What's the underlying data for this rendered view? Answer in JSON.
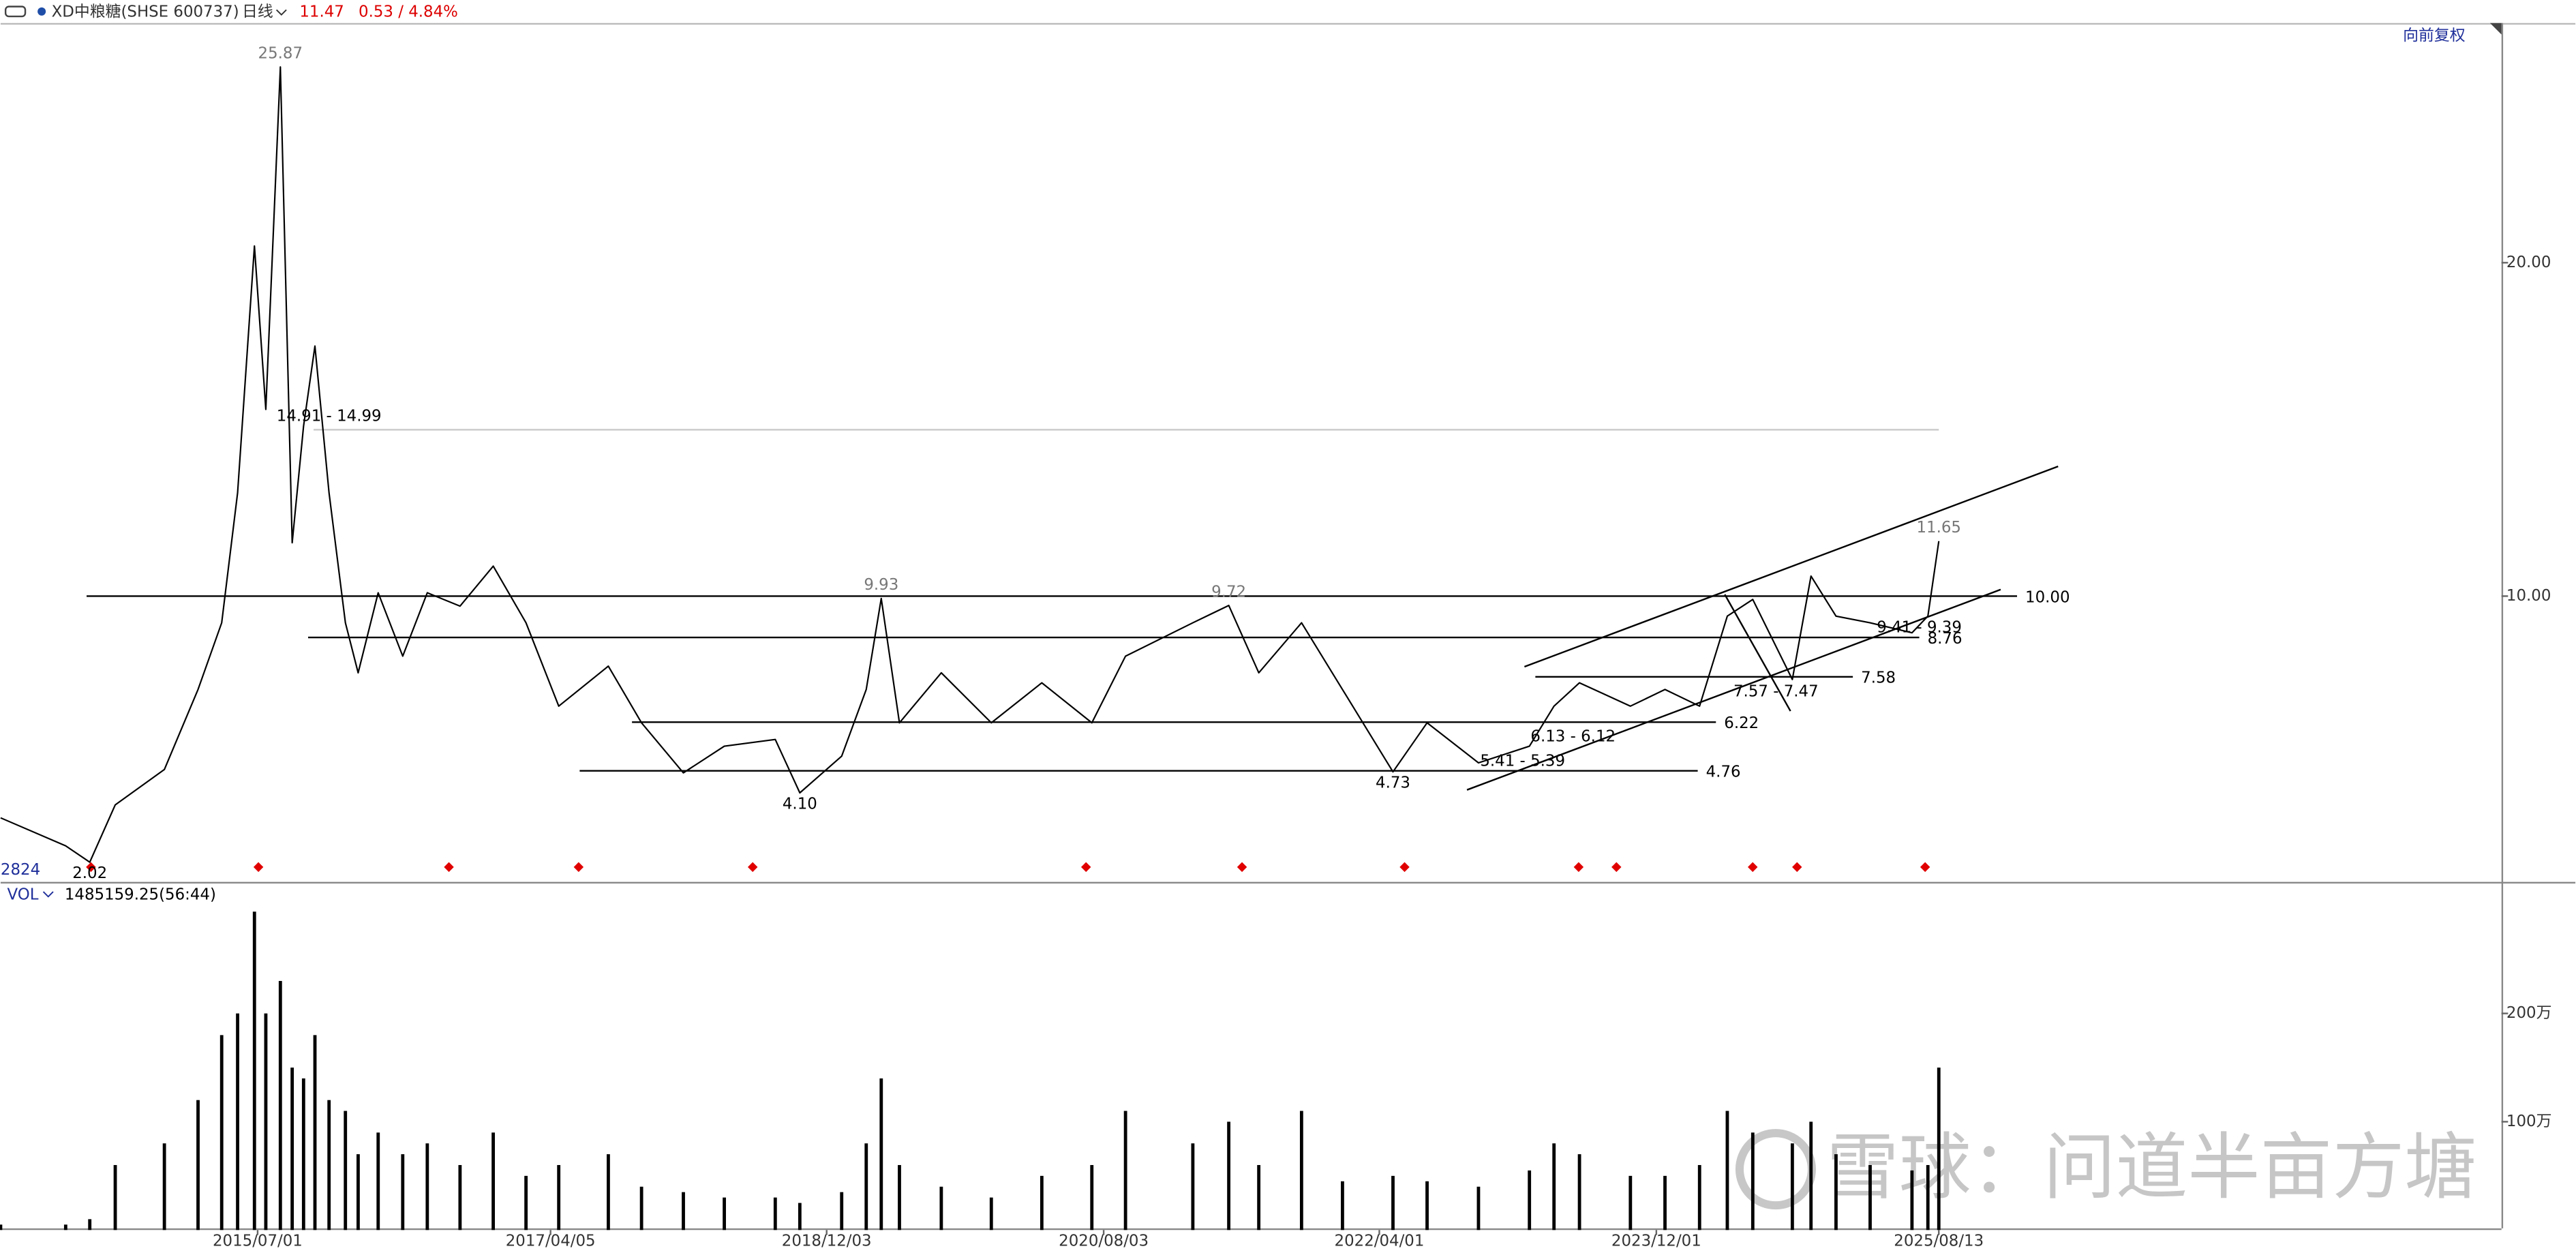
{
  "header": {
    "symbol": "XD中粮糖(SHSE 600737)",
    "period": "日线",
    "price": "11.47",
    "change": "0.53 / 4.84%",
    "adjust": "向前复权",
    "count": "2824",
    "watermark": "雪球：问道半亩方塘"
  },
  "chart_data": [
    {
      "type": "line",
      "color": "#000000",
      "xlim": [
        "2013/12/13",
        "2029/01/01"
      ],
      "ylim": [
        1.43,
        27.14
      ],
      "yticks": [
        {
          "value": 10,
          "label": "10.00"
        },
        {
          "value": 20,
          "label": "20.00"
        }
      ],
      "x": [
        "2013/12/13",
        "2014/05/05",
        "2014/06/27",
        "2014/08/22",
        "2014/12/08",
        "2015/02/20",
        "2015/04/13",
        "2015/05/18",
        "2015/06/24",
        "2015/07/19",
        "2015/08/20",
        "2015/09/15",
        "2015/10/10",
        "2015/11/04",
        "2015/12/05",
        "2016/01/10",
        "2016/02/07",
        "2016/03/22",
        "2016/05/15",
        "2016/07/08",
        "2016/09/18",
        "2016/11/30",
        "2017/02/10",
        "2017/04/23",
        "2017/08/10",
        "2017/10/22",
        "2018/01/22",
        "2018/04/22",
        "2018/08/12",
        "2018/10/05",
        "2019/01/05",
        "2019/02/28",
        "2019/04/02",
        "2019/05/12",
        "2019/08/12",
        "2019/11/30",
        "2020/03/20",
        "2020/07/08",
        "2020/09/20",
        "2021/02/15",
        "2021/05/05",
        "2021/07/10",
        "2021/10/12",
        "2022/01/10",
        "2022/05/01",
        "2022/07/15",
        "2022/11/05",
        "2023/02/25",
        "2023/04/20",
        "2023/06/15",
        "2023/10/05",
        "2023/12/20",
        "2024/03/05",
        "2024/05/05",
        "2024/06/30",
        "2024/09/25",
        "2024/11/05",
        "2024/12/30",
        "2025/03/15",
        "2025/06/15",
        "2025/07/20",
        "2025/08/13"
      ],
      "values": [
        3.35,
        2.51,
        2.02,
        3.74,
        4.8,
        7.2,
        9.2,
        13.1,
        20.5,
        15.6,
        25.87,
        11.6,
        15.1,
        17.5,
        13.1,
        9.2,
        7.7,
        10.1,
        8.2,
        10.1,
        9.7,
        10.9,
        9.2,
        6.7,
        7.9,
        6.2,
        4.7,
        5.5,
        5.7,
        4.1,
        5.2,
        7.2,
        9.93,
        6.2,
        7.7,
        6.2,
        7.4,
        6.2,
        8.2,
        9.2,
        9.72,
        7.7,
        9.2,
        7.2,
        4.73,
        6.2,
        5.0,
        5.5,
        6.7,
        7.4,
        6.7,
        7.2,
        6.7,
        9.4,
        9.9,
        7.5,
        10.6,
        9.4,
        9.2,
        8.9,
        9.4,
        11.65
      ],
      "levels": [
        {
          "value": 10,
          "label": "10.00",
          "from": "2014/06/20",
          "to": "2026/02/01",
          "color": "#000000"
        },
        {
          "value": 8.76,
          "label": "8.76",
          "from": "2015/10/20",
          "to": "2025/07/01",
          "color": "#000000"
        },
        {
          "value": 7.58,
          "label": "7.58",
          "from": "2023/03/10",
          "to": "2025/02/05",
          "color": "#000000"
        },
        {
          "value": 6.22,
          "label": "6.22",
          "from": "2017/10/01",
          "to": "2024/04/10",
          "color": "#000000"
        },
        {
          "value": 4.76,
          "label": "4.76",
          "from": "2017/06/08",
          "to": "2024/03/01",
          "color": "#000000"
        },
        {
          "value": 14.99,
          "from": "2015/11/01",
          "to": "2025/08/13",
          "color": "#cccccc"
        }
      ],
      "annotations": [
        {
          "text": "25.87",
          "x": "2015/08/20",
          "y": 25.87,
          "pos": "above",
          "color": "#777777"
        },
        {
          "text": "14.91 - 14.99",
          "x": "2015/12/05",
          "y": 14.99,
          "pos": "above",
          "color": "#000000"
        },
        {
          "text": "9.93",
          "x": "2019/04/02",
          "y": 9.93,
          "pos": "above",
          "color": "#777777"
        },
        {
          "text": "9.72",
          "x": "2021/05/05",
          "y": 9.72,
          "pos": "above",
          "color": "#777777"
        },
        {
          "text": "11.65",
          "x": "2025/08/13",
          "y": 11.65,
          "pos": "above",
          "color": "#777777"
        },
        {
          "text": "2.02",
          "x": "2014/06/27",
          "y": 2.02,
          "pos": "below",
          "color": "#000000"
        },
        {
          "text": "4.10",
          "x": "2018/10/05",
          "y": 4.1,
          "pos": "below",
          "color": "#000000"
        },
        {
          "text": "4.73",
          "x": "2022/05/01",
          "y": 4.73,
          "pos": "below",
          "color": "#000000"
        },
        {
          "text": "5.41 - 5.39",
          "x": "2023/02/10",
          "y": 5.39,
          "pos": "below",
          "color": "#000000"
        },
        {
          "text": "6.13 - 6.12",
          "x": "2023/06/01",
          "y": 6.12,
          "pos": "below",
          "color": "#000000"
        },
        {
          "text": "7.57 - 7.47",
          "x": "2024/08/20",
          "y": 7.47,
          "pos": "below",
          "color": "#000000"
        },
        {
          "text": "9.41 - 9.39",
          "x": "2025/07/01",
          "y": 9.39,
          "pos": "below",
          "color": "#000000"
        }
      ]
    },
    {
      "type": "bar",
      "title": "VOL",
      "subtitle": "1485159.25(56:44)",
      "color": "#000000",
      "xlim": [
        "2013/12/13",
        "2029/01/01"
      ],
      "ylim": [
        0,
        320
      ],
      "yticks": [
        {
          "value": 100,
          "label": "100万"
        },
        {
          "value": 200,
          "label": "200万"
        }
      ],
      "xticks": [
        "2015/07/01",
        "2017/04/05",
        "2018/12/03",
        "2020/08/03",
        "2022/04/01",
        "2023/12/01",
        "2025/08/13"
      ],
      "x": [
        "2013/12/13",
        "2014/05/05",
        "2014/06/27",
        "2014/08/22",
        "2014/12/08",
        "2015/02/20",
        "2015/04/13",
        "2015/05/18",
        "2015/06/24",
        "2015/07/19",
        "2015/08/20",
        "2015/09/15",
        "2015/10/10",
        "2015/11/04",
        "2015/12/05",
        "2016/01/10",
        "2016/02/07",
        "2016/03/22",
        "2016/05/15",
        "2016/07/08",
        "2016/09/18",
        "2016/11/30",
        "2017/02/10",
        "2017/04/23",
        "2017/08/10",
        "2017/10/22",
        "2018/01/22",
        "2018/04/22",
        "2018/08/12",
        "2018/10/05",
        "2019/01/05",
        "2019/02/28",
        "2019/04/02",
        "2019/05/12",
        "2019/08/12",
        "2019/11/30",
        "2020/03/20",
        "2020/07/08",
        "2020/09/20",
        "2021/02/15",
        "2021/05/05",
        "2021/07/10",
        "2021/10/12",
        "2022/01/10",
        "2022/05/01",
        "2022/07/15",
        "2022/11/05",
        "2023/02/25",
        "2023/04/20",
        "2023/06/15",
        "2023/10/05",
        "2023/12/20",
        "2024/03/05",
        "2024/05/05",
        "2024/06/30",
        "2024/09/25",
        "2024/11/05",
        "2024/12/30",
        "2025/03/15",
        "2025/06/15",
        "2025/07/20",
        "2025/08/13"
      ],
      "values": [
        5,
        5,
        10,
        60,
        80,
        120,
        180,
        200,
        294,
        200,
        230,
        150,
        140,
        180,
        120,
        110,
        70,
        90,
        70,
        80,
        60,
        90,
        50,
        60,
        70,
        40,
        35,
        30,
        30,
        25,
        35,
        80,
        140,
        60,
        40,
        30,
        50,
        60,
        110,
        80,
        100,
        60,
        110,
        45,
        50,
        45,
        40,
        55,
        80,
        70,
        50,
        50,
        60,
        110,
        90,
        80,
        100,
        70,
        60,
        55,
        60,
        150
      ]
    }
  ]
}
